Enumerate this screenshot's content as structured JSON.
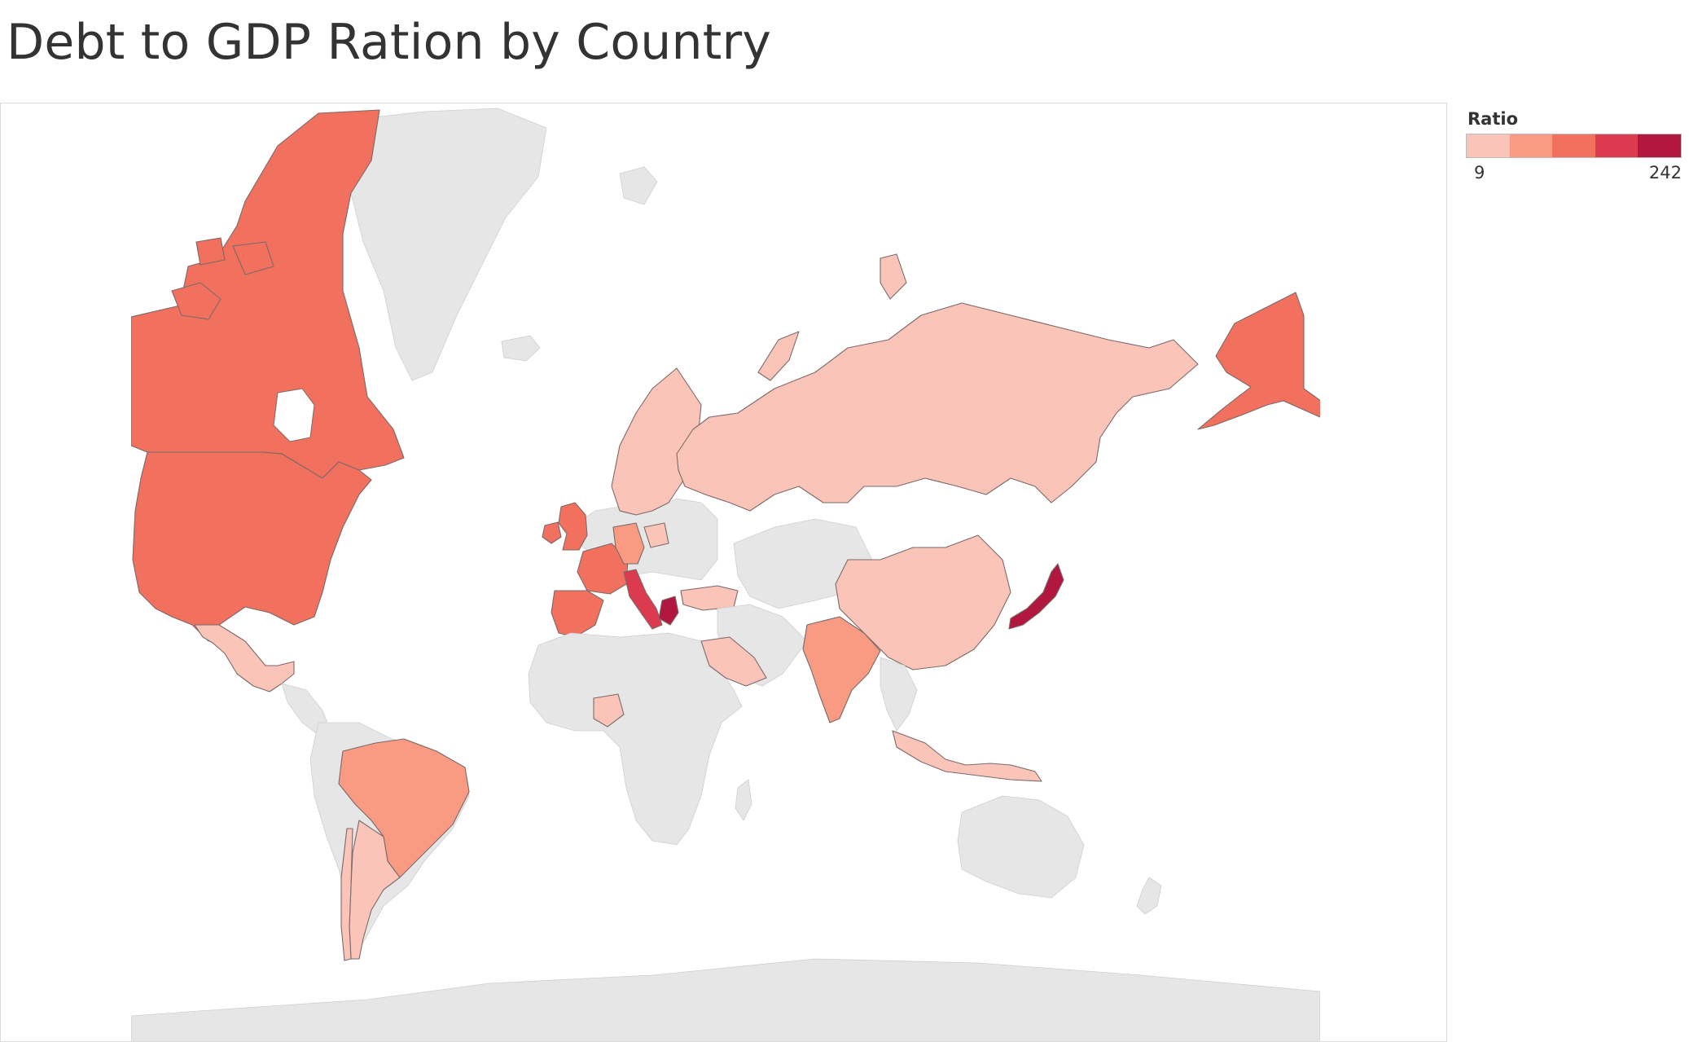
{
  "title": "Debt to GDP Ration by Country",
  "legend": {
    "title": "Ratio",
    "min_label": "9",
    "max_label": "242",
    "colors": [
      "#fbc4b9",
      "#f99a83",
      "#f2705e",
      "#dc3a4f",
      "#b2173f"
    ]
  },
  "map": {
    "base_color": "#e6e6e6",
    "highlighted_countries": [
      {
        "name": "Canada",
        "bin": 3
      },
      {
        "name": "United States",
        "bin": 3
      },
      {
        "name": "Alaska (US)",
        "bin": 3
      },
      {
        "name": "Mexico",
        "bin": 1
      },
      {
        "name": "Brazil",
        "bin": 2
      },
      {
        "name": "Argentina",
        "bin": 1
      },
      {
        "name": "Chile",
        "bin": 1
      },
      {
        "name": "United Kingdom",
        "bin": 3
      },
      {
        "name": "Ireland",
        "bin": 3
      },
      {
        "name": "France",
        "bin": 3
      },
      {
        "name": "Belgium",
        "bin": 3
      },
      {
        "name": "Spain",
        "bin": 3
      },
      {
        "name": "Portugal",
        "bin": 3
      },
      {
        "name": "Italy",
        "bin": 4
      },
      {
        "name": "Greece",
        "bin": 5
      },
      {
        "name": "Germany",
        "bin": 2
      },
      {
        "name": "Netherlands",
        "bin": 2
      },
      {
        "name": "Austria",
        "bin": 2
      },
      {
        "name": "Norway",
        "bin": 1
      },
      {
        "name": "Sweden",
        "bin": 1
      },
      {
        "name": "Finland",
        "bin": 1
      },
      {
        "name": "Poland",
        "bin": 1
      },
      {
        "name": "Russia",
        "bin": 1
      },
      {
        "name": "Turkey",
        "bin": 1
      },
      {
        "name": "Saudi Arabia",
        "bin": 1
      },
      {
        "name": "India",
        "bin": 2
      },
      {
        "name": "China",
        "bin": 1
      },
      {
        "name": "Japan",
        "bin": 5
      },
      {
        "name": "Indonesia",
        "bin": 1
      },
      {
        "name": "Nigeria",
        "bin": 1
      }
    ]
  }
}
